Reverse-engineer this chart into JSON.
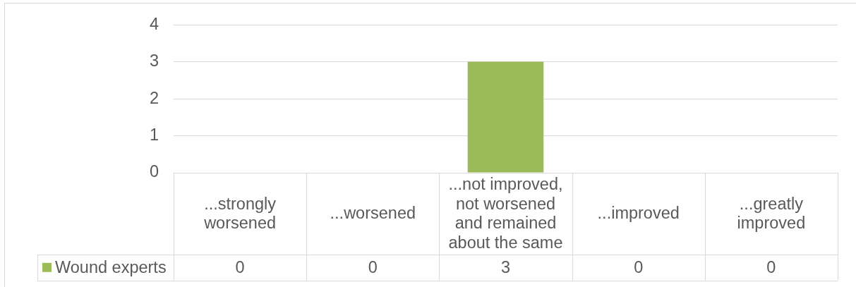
{
  "chart_data": {
    "type": "bar",
    "categories": [
      "...strongly worsened",
      "...worsened",
      "...not improved, not worsened and remained about the same",
      "...improved",
      "...greatly improved"
    ],
    "series": [
      {
        "name": "Wound experts",
        "color": "#9bbb59",
        "values": [
          0,
          0,
          3,
          0,
          0
        ]
      }
    ],
    "ylim": [
      0,
      4
    ],
    "yticks": [
      0,
      1,
      2,
      3,
      4
    ],
    "grid": "y",
    "legend": "bottom left",
    "data_labels": true
  }
}
